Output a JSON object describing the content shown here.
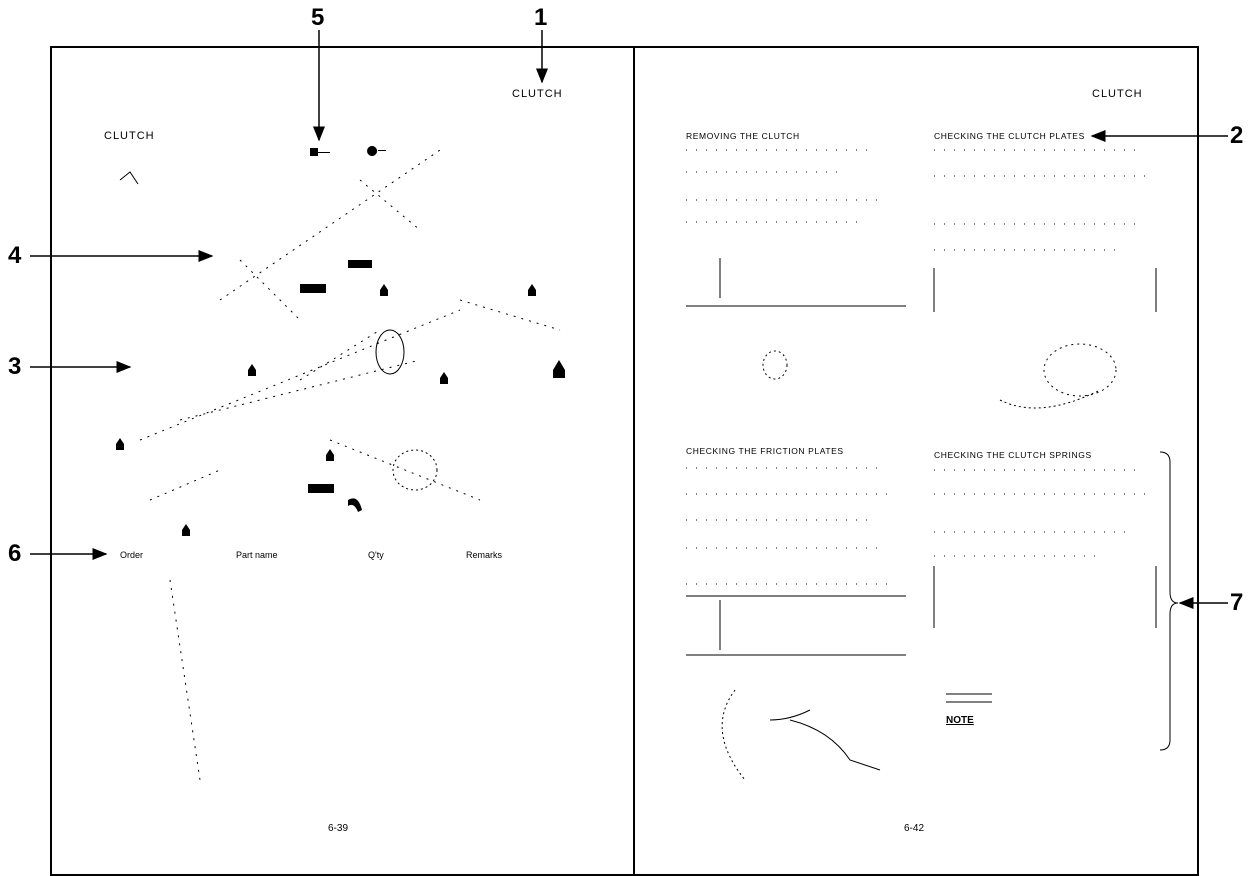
{
  "callouts": {
    "c1": "1",
    "c2": "2",
    "c3": "3",
    "c4": "4",
    "c5": "5",
    "c6": "6",
    "c7": "7"
  },
  "left_page": {
    "header": "CLUTCH",
    "section_title": "CLUTCH",
    "page_number": "6-39",
    "table_labels": {
      "col1": "Order",
      "col2": "Part name",
      "col3": "Q'ty",
      "col4": "Remarks"
    }
  },
  "right_page": {
    "header": "CLUTCH",
    "page_number": "6-42",
    "sections": {
      "top_left": "REMOVING THE CLUTCH",
      "top_right": "CHECKING THE CLUTCH PLATES",
      "bottom_left": "CHECKING THE FRICTION PLATES",
      "bottom_right": "CHECKING THE CLUTCH SPRINGS"
    },
    "mark": "NOTE"
  }
}
